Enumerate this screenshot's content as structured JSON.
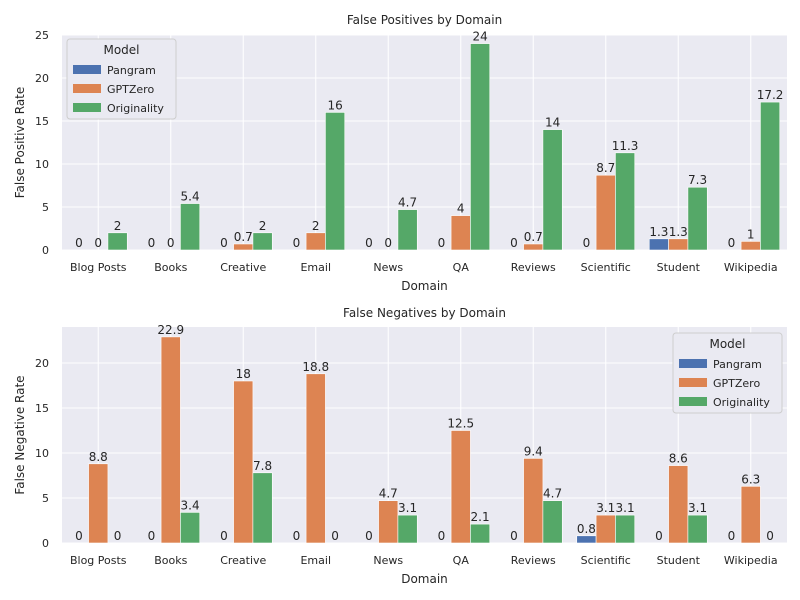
{
  "chart_data": [
    {
      "type": "bar",
      "title": "False Positives by Domain",
      "xlabel": "Domain",
      "ylabel": "False Positive Rate",
      "ylim": [
        0,
        25
      ],
      "yticks": [
        0,
        5,
        10,
        15,
        20,
        25
      ],
      "grid": true,
      "legend": {
        "title": "Model",
        "placement": "top-left"
      },
      "categories": [
        "Blog Posts",
        "Books",
        "Creative",
        "Email",
        "News",
        "QA",
        "Reviews",
        "Scientific",
        "Student",
        "Wikipedia"
      ],
      "series": [
        {
          "name": "Pangram",
          "color": "#4c72b0",
          "values": [
            0,
            0,
            0,
            0,
            0,
            0,
            0,
            0,
            1.3,
            0
          ]
        },
        {
          "name": "GPTZero",
          "color": "#dd8452",
          "values": [
            0,
            0,
            0.7,
            2,
            0,
            4,
            0.7,
            8.7,
            1.3,
            1
          ]
        },
        {
          "name": "Originality",
          "color": "#55a868",
          "values": [
            2,
            5.4,
            2,
            16,
            4.7,
            24,
            14,
            11.3,
            7.3,
            17.2
          ]
        }
      ]
    },
    {
      "type": "bar",
      "title": "False Negatives by Domain",
      "xlabel": "Domain",
      "ylabel": "False Negative Rate",
      "ylim": [
        0,
        24
      ],
      "yticks": [
        0,
        5,
        10,
        15,
        20
      ],
      "grid": true,
      "legend": {
        "title": "Model",
        "placement": "top-right"
      },
      "categories": [
        "Blog Posts",
        "Books",
        "Creative",
        "Email",
        "News",
        "QA",
        "Reviews",
        "Scientific",
        "Student",
        "Wikipedia"
      ],
      "series": [
        {
          "name": "Pangram",
          "color": "#4c72b0",
          "values": [
            0,
            0,
            0,
            0,
            0,
            0,
            0,
            0.8,
            0,
            0
          ]
        },
        {
          "name": "GPTZero",
          "color": "#dd8452",
          "values": [
            8.8,
            22.9,
            18,
            18.8,
            4.7,
            12.5,
            9.4,
            3.1,
            8.6,
            6.3
          ]
        },
        {
          "name": "Originality",
          "color": "#55a868",
          "values": [
            0,
            3.4,
            7.8,
            0,
            3.1,
            2.1,
            4.7,
            3.1,
            3.1,
            0
          ]
        }
      ]
    }
  ]
}
